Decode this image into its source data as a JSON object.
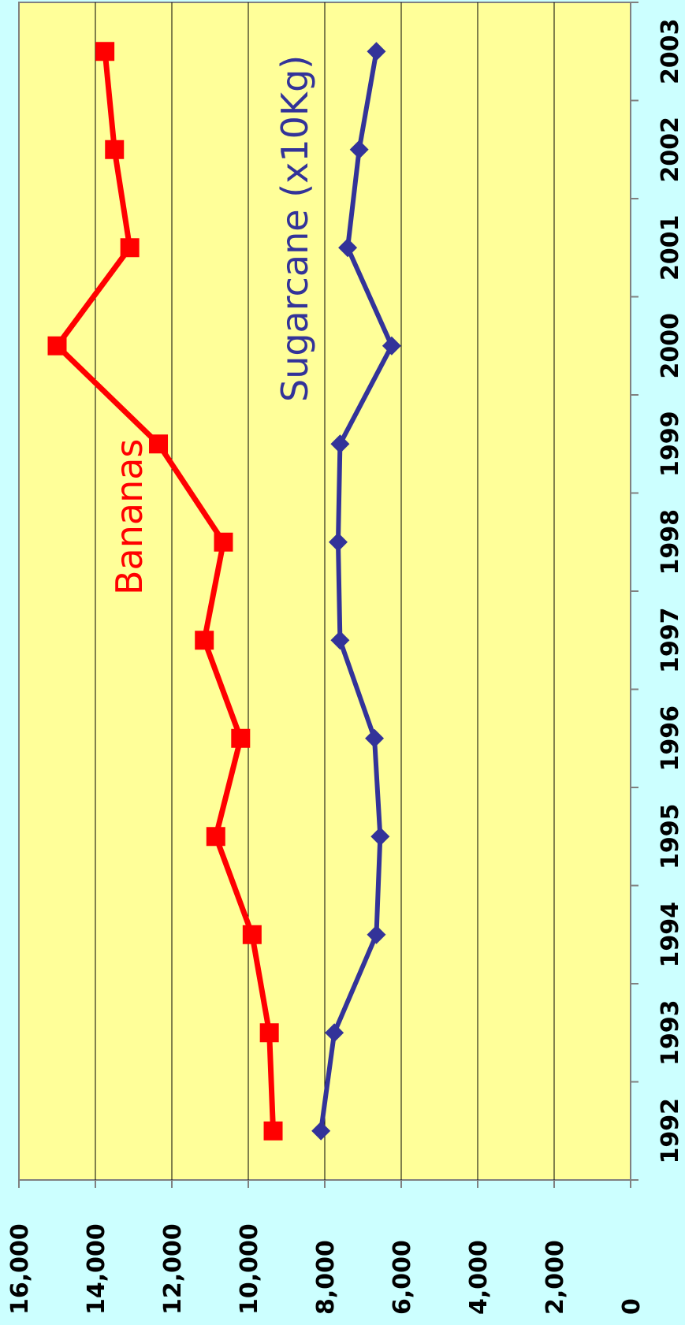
{
  "chart_data": {
    "type": "line",
    "orientation": "rotated-90-clockwise",
    "title": "",
    "xlabel": "",
    "ylabel": "",
    "x": [
      "1992",
      "1993",
      "1994",
      "1995",
      "1996",
      "1997",
      "1998",
      "1999",
      "2000",
      "2001",
      "2002",
      "2003"
    ],
    "ylim": [
      0,
      16000
    ],
    "yticks": [
      "0",
      "2,000",
      "4,000",
      "6,000",
      "8,000",
      "10,000",
      "12,000",
      "14,000",
      "16,000"
    ],
    "grid": true,
    "legend": "inline series labels",
    "colors": {
      "background": "#ccffff",
      "plot_area": "#ffff99",
      "gridline": "#000000",
      "axis": "#808080"
    },
    "series": [
      {
        "name": "Bananas",
        "color": "#ff0000",
        "marker": "square",
        "values": [
          9350,
          9450,
          9900,
          10850,
          10200,
          11150,
          10650,
          12350,
          15000,
          13100,
          13500,
          13750
        ]
      },
      {
        "name": "Sugarcane (x10Kg)",
        "color": "#333399",
        "marker": "diamond",
        "values": [
          8100,
          7750,
          6650,
          6550,
          6700,
          7600,
          7650,
          7600,
          6250,
          7400,
          7100,
          6650
        ]
      }
    ]
  }
}
